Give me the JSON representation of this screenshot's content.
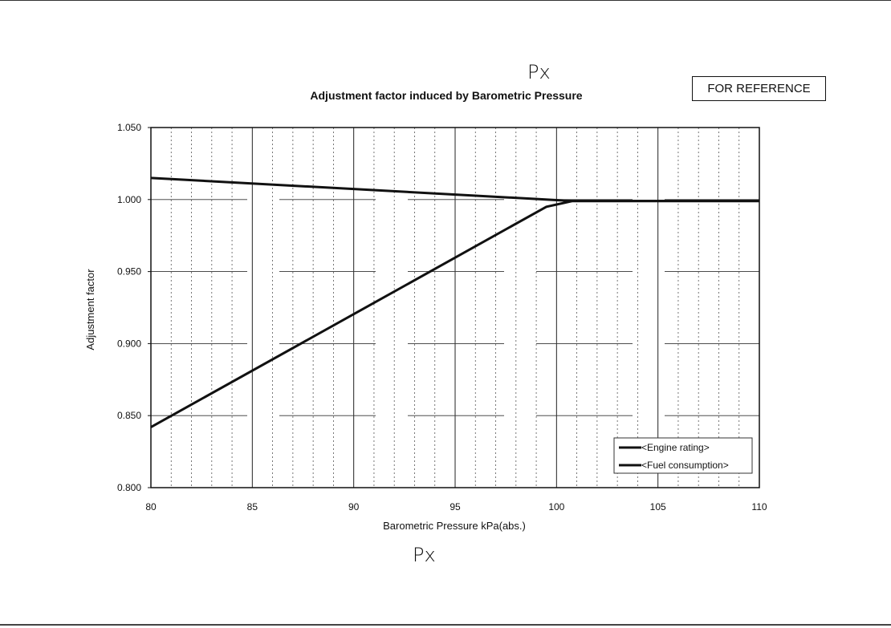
{
  "annotations": {
    "handwritten_top": "Px",
    "handwritten_bottom": "Px",
    "stamp": "FOR REFERENCE"
  },
  "chart_data": {
    "type": "line",
    "title": "Adjustment factor induced by Barometric Pressure",
    "xlabel": "Barometric Pressure  kPa(abs.)",
    "ylabel": "Adjustment factor",
    "xlim": [
      80,
      110
    ],
    "ylim": [
      0.8,
      1.05
    ],
    "x_ticks": [
      "80",
      "85",
      "90",
      "95",
      "100",
      "105",
      "110"
    ],
    "y_ticks": [
      "0.800",
      "0.850",
      "0.900",
      "0.950",
      "1.000",
      "1.050"
    ],
    "grid": true,
    "legend_position": "bottom-right",
    "series": [
      {
        "name": "<Engine rating>",
        "x": [
          80,
          99.5,
          100.8,
          110
        ],
        "y": [
          0.842,
          0.995,
          0.999,
          0.999
        ]
      },
      {
        "name": "<Fuel consumption>",
        "x": [
          80,
          100.8,
          110
        ],
        "y": [
          1.015,
          0.999,
          0.999
        ]
      }
    ]
  }
}
